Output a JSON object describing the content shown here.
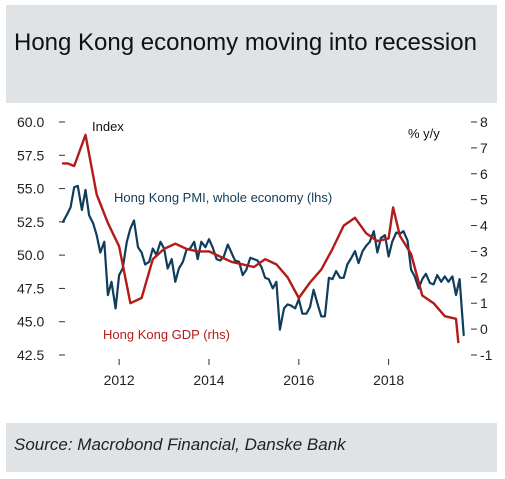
{
  "title": "Hong Kong economy moving into recession",
  "source": "Source: Macrobond Financial, Danske Bank",
  "colors": {
    "pmi": "#0f3d5c",
    "gdp": "#b31b1b",
    "background": "#dfe3e6",
    "plot": "#ffffff"
  },
  "chart_data": {
    "type": "line",
    "left_axis_title": "Index",
    "right_axis_title": "% y/y",
    "left_ticks": [
      "60.0",
      "57.5",
      "55.0",
      "52.5",
      "50.0",
      "47.5",
      "45.0",
      "42.5"
    ],
    "right_ticks": [
      "8",
      "7",
      "6",
      "5",
      "4",
      "3",
      "2",
      "1",
      "0",
      "-1"
    ],
    "x_ticks": [
      "2012",
      "2014",
      "2016",
      "2018"
    ],
    "ylim_left": [
      42.5,
      60.0
    ],
    "ylim_right": [
      -1,
      8
    ],
    "xlim": [
      2010.75,
      2019.7
    ],
    "grid": false,
    "series": [
      {
        "name": "Hong Kong PMI, whole economy (lhs)",
        "axis": "left",
        "x": [
          2010.75,
          2010.83,
          2010.92,
          2011.0,
          2011.08,
          2011.17,
          2011.25,
          2011.33,
          2011.42,
          2011.5,
          2011.58,
          2011.67,
          2011.75,
          2011.83,
          2011.92,
          2012.0,
          2012.08,
          2012.17,
          2012.25,
          2012.33,
          2012.42,
          2012.5,
          2012.58,
          2012.67,
          2012.75,
          2012.83,
          2012.92,
          2013.0,
          2013.08,
          2013.17,
          2013.25,
          2013.33,
          2013.42,
          2013.5,
          2013.58,
          2013.67,
          2013.75,
          2013.83,
          2013.92,
          2014.0,
          2014.08,
          2014.17,
          2014.25,
          2014.33,
          2014.42,
          2014.5,
          2014.58,
          2014.67,
          2014.75,
          2014.83,
          2014.92,
          2015.0,
          2015.08,
          2015.17,
          2015.25,
          2015.33,
          2015.42,
          2015.5,
          2015.58,
          2015.67,
          2015.75,
          2015.83,
          2015.92,
          2016.0,
          2016.08,
          2016.17,
          2016.25,
          2016.33,
          2016.42,
          2016.5,
          2016.58,
          2016.67,
          2016.75,
          2016.83,
          2016.92,
          2017.0,
          2017.08,
          2017.17,
          2017.25,
          2017.33,
          2017.42,
          2017.5,
          2017.58,
          2017.67,
          2017.75,
          2017.83,
          2017.92,
          2018.0,
          2018.08,
          2018.17,
          2018.25,
          2018.33,
          2018.42,
          2018.5,
          2018.58,
          2018.67,
          2018.75,
          2018.83,
          2018.92,
          2019.0,
          2019.08,
          2019.17,
          2019.25,
          2019.33,
          2019.42,
          2019.5,
          2019.58,
          2019.67
        ],
        "y": [
          52.5,
          53.0,
          53.6,
          55.1,
          55.2,
          53.4,
          54.9,
          53.0,
          52.4,
          51.5,
          50.2,
          51.0,
          47.0,
          48.0,
          46.0,
          48.5,
          49.0,
          51.0,
          52.0,
          52.6,
          50.6,
          50.2,
          49.3,
          49.5,
          50.5,
          50.0,
          51.0,
          50.5,
          49.0,
          49.7,
          48.0,
          49.0,
          49.5,
          50.4,
          50.5,
          51.0,
          49.7,
          51.0,
          50.6,
          51.2,
          50.6,
          49.7,
          49.6,
          49.9,
          50.8,
          50.2,
          49.6,
          49.5,
          48.5,
          48.9,
          49.8,
          49.7,
          49.6,
          49.1,
          48.3,
          48.2,
          47.5,
          48.0,
          44.4,
          46.0,
          46.3,
          46.2,
          46.0,
          46.7,
          45.6,
          45.6,
          46.1,
          47.4,
          46.3,
          45.4,
          45.4,
          48.3,
          48.2,
          48.8,
          48.3,
          48.3,
          49.3,
          49.8,
          50.3,
          49.4,
          50.3,
          50.7,
          51.0,
          51.8,
          50.2,
          51.3,
          51.5,
          49.9,
          51.0,
          51.7,
          51.6,
          51.8,
          51.1,
          48.9,
          48.4,
          47.5,
          48.2,
          48.6,
          47.9,
          47.8,
          48.5,
          48.0,
          48.4,
          48.0,
          48.4,
          47.0,
          48.2,
          44.0
        ]
      },
      {
        "name": "Hong Kong GDP (rhs)",
        "axis": "right",
        "x": [
          2010.75,
          2010.85,
          2011.0,
          2011.25,
          2011.5,
          2011.75,
          2012.0,
          2012.25,
          2012.5,
          2012.75,
          2013.0,
          2013.25,
          2013.5,
          2013.75,
          2014.0,
          2014.25,
          2014.5,
          2014.75,
          2015.0,
          2015.25,
          2015.5,
          2015.75,
          2016.0,
          2016.25,
          2016.5,
          2016.75,
          2017.0,
          2017.25,
          2017.5,
          2017.75,
          2018.0,
          2018.1,
          2018.25,
          2018.5,
          2018.75,
          2019.0,
          2019.25,
          2019.5,
          2019.55
        ],
        "y": [
          6.4,
          6.4,
          6.3,
          7.5,
          5.2,
          4.1,
          3.2,
          1.0,
          1.2,
          2.7,
          3.1,
          3.3,
          3.1,
          3.0,
          3.0,
          2.8,
          2.6,
          2.5,
          2.4,
          2.7,
          2.5,
          2.0,
          1.2,
          1.8,
          2.3,
          3.1,
          4.0,
          4.3,
          3.7,
          3.4,
          3.5,
          4.7,
          3.6,
          2.9,
          1.3,
          1.0,
          0.5,
          0.4,
          -0.5
        ]
      }
    ],
    "annotations": [
      {
        "text": "Hong Kong PMI, whole economy (lhs)",
        "color": "pmi"
      },
      {
        "text": "Hong Kong GDP (rhs)",
        "color": "gdp"
      }
    ]
  }
}
